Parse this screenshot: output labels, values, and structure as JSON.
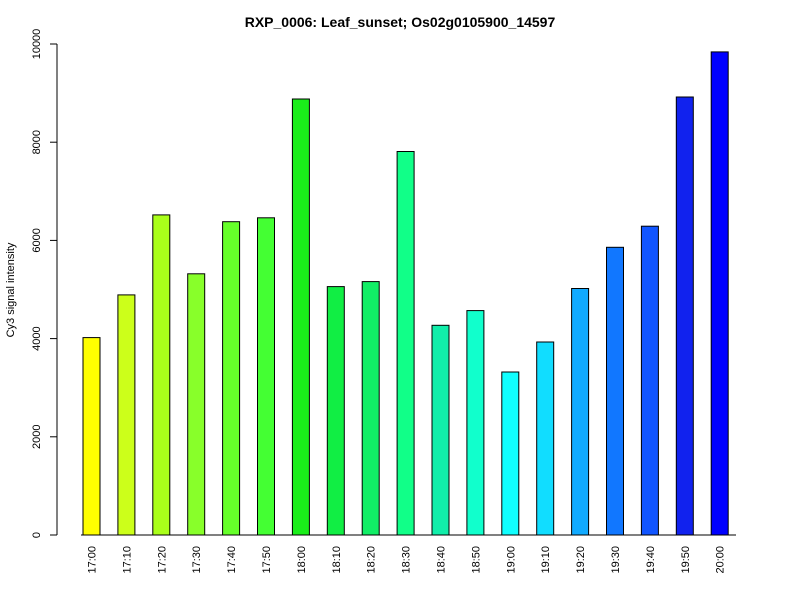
{
  "chart_data": {
    "type": "bar",
    "title": "RXP_0006: Leaf_sunset; Os02g0105900_14597",
    "xlabel": "",
    "ylabel": "Cy3 signal intensity",
    "ylim": [
      0,
      10000
    ],
    "yticks": [
      0,
      2000,
      4000,
      6000,
      8000,
      10000
    ],
    "grid": false,
    "categories": [
      "17:00",
      "17:10",
      "17:20",
      "17:30",
      "17:40",
      "17:50",
      "18:00",
      "18:10",
      "18:20",
      "18:30",
      "18:40",
      "18:50",
      "19:00",
      "19:10",
      "19:20",
      "19:30",
      "19:40",
      "19:50",
      "20:00"
    ],
    "values": [
      4020,
      4890,
      6520,
      5320,
      6380,
      6460,
      8880,
      5060,
      5160,
      7810,
      4270,
      4570,
      3320,
      3930,
      5020,
      5860,
      6290,
      8920,
      9840
    ],
    "colors": [
      "#FFFF00",
      "#CCFF1A",
      "#AAFF1A",
      "#88FF2A",
      "#66FF2A",
      "#44FF33",
      "#1AEE1A",
      "#11EE44",
      "#11EE66",
      "#11FF88",
      "#11EEAA",
      "#11FFCC",
      "#11FFFF",
      "#11DDFF",
      "#11AAFF",
      "#1177FF",
      "#1155FF",
      "#1122EE",
      "#0000FF"
    ]
  }
}
